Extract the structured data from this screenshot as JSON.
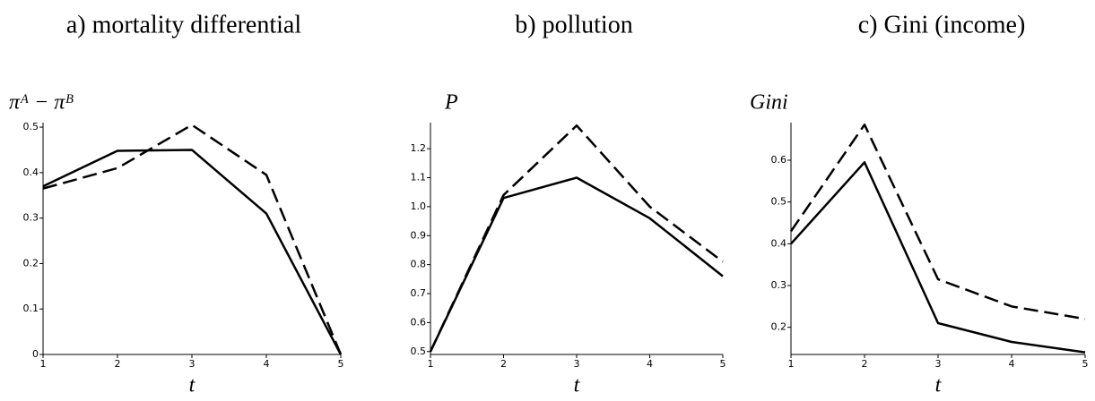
{
  "chart_data": [
    {
      "type": "line",
      "title": "a) mortality differential",
      "ylabel": "πᴬ − πᴮ",
      "xlabel": "t",
      "x": [
        1,
        2,
        3,
        4,
        5
      ],
      "xlim": [
        1,
        5
      ],
      "xticks": [
        1,
        2,
        3,
        4,
        5
      ],
      "ylim": [
        0,
        0.51
      ],
      "yticks": [
        0,
        0.1,
        0.2,
        0.3,
        0.4,
        0.5
      ],
      "series": [
        {
          "color": "#000000",
          "dash": "solid",
          "values": [
            0.37,
            0.448,
            0.45,
            0.31,
            0
          ]
        },
        {
          "color": "#000000",
          "dash": "dashed",
          "values": [
            0.365,
            0.41,
            0.505,
            0.395,
            0
          ]
        }
      ]
    },
    {
      "type": "line",
      "title": "b) pollution",
      "ylabel": "P",
      "xlabel": "t",
      "x": [
        1,
        2,
        3,
        4,
        5
      ],
      "xlim": [
        1,
        5
      ],
      "xticks": [
        1,
        2,
        3,
        4,
        5
      ],
      "ylim": [
        0.49,
        1.29
      ],
      "yticks": [
        0.5,
        0.6,
        0.7,
        0.8,
        0.9,
        {
          "value": 1,
          "label": "1.0"
        },
        1.1,
        1.2
      ],
      "series": [
        {
          "color": "#000000",
          "dash": "solid",
          "values": [
            0.5,
            1.03,
            1.1,
            0.96,
            0.76
          ]
        },
        {
          "color": "#000000",
          "dash": "dashed",
          "values": [
            0.5,
            1.04,
            1.28,
            1.0,
            0.81
          ]
        }
      ]
    },
    {
      "type": "line",
      "title": "c) Gini (income)",
      "ylabel": "Gini",
      "xlabel": "t",
      "x": [
        1,
        2,
        3,
        4,
        5
      ],
      "xlim": [
        1,
        5
      ],
      "xticks": [
        1,
        2,
        3,
        4,
        5
      ],
      "ylim": [
        0.135,
        0.69
      ],
      "yticks": [
        0.2,
        0.3,
        0.4,
        0.5,
        0.6
      ],
      "series": [
        {
          "color": "#000000",
          "dash": "solid",
          "values": [
            0.4,
            0.595,
            0.21,
            0.165,
            0.14
          ]
        },
        {
          "color": "#000000",
          "dash": "dashed",
          "values": [
            0.43,
            0.685,
            0.315,
            0.25,
            0.22
          ]
        }
      ]
    }
  ]
}
